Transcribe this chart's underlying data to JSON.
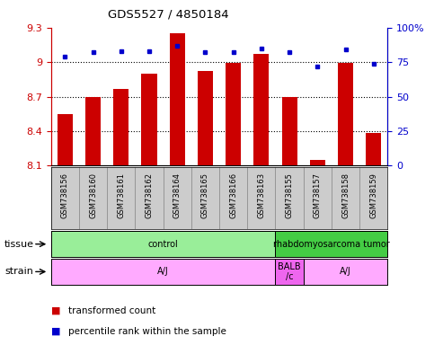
{
  "title": "GDS5527 / 4850184",
  "samples": [
    "GSM738156",
    "GSM738160",
    "GSM738161",
    "GSM738162",
    "GSM738164",
    "GSM738165",
    "GSM738166",
    "GSM738163",
    "GSM738155",
    "GSM738157",
    "GSM738158",
    "GSM738159"
  ],
  "red_values": [
    8.55,
    8.7,
    8.77,
    8.9,
    9.25,
    8.92,
    8.99,
    9.07,
    8.7,
    8.15,
    8.99,
    8.38
  ],
  "blue_values": [
    79,
    82,
    83,
    83,
    87,
    82,
    82,
    85,
    82,
    72,
    84,
    74
  ],
  "ylim_left": [
    8.1,
    9.3
  ],
  "ylim_right": [
    0,
    100
  ],
  "yticks_left": [
    8.1,
    8.4,
    8.7,
    9.0,
    9.3
  ],
  "yticks_right": [
    0,
    25,
    50,
    75,
    100
  ],
  "ytick_labels_left": [
    "8.1",
    "8.4",
    "8.7",
    "9",
    "9.3"
  ],
  "ytick_labels_right": [
    "0",
    "25",
    "50",
    "75",
    "100%"
  ],
  "bar_color": "#cc0000",
  "dot_color": "#0000cc",
  "bar_base": 8.1,
  "tissue_groups": [
    {
      "label": "control",
      "start": 0,
      "end": 8,
      "color": "#99ee99"
    },
    {
      "label": "rhabdomyosarcoma tumor",
      "start": 8,
      "end": 12,
      "color": "#44cc44"
    }
  ],
  "strain_groups": [
    {
      "label": "A/J",
      "start": 0,
      "end": 8,
      "color": "#ffaaff"
    },
    {
      "label": "BALB\n/c",
      "start": 8,
      "end": 9,
      "color": "#ee66ee"
    },
    {
      "label": "A/J",
      "start": 9,
      "end": 12,
      "color": "#ffaaff"
    }
  ],
  "axis_color_left": "#cc0000",
  "axis_color_right": "#0000cc",
  "grid_values": [
    8.4,
    8.7,
    9.0
  ],
  "legend_items": [
    {
      "label": "transformed count",
      "color": "#cc0000"
    },
    {
      "label": "percentile rank within the sample",
      "color": "#0000cc"
    }
  ]
}
